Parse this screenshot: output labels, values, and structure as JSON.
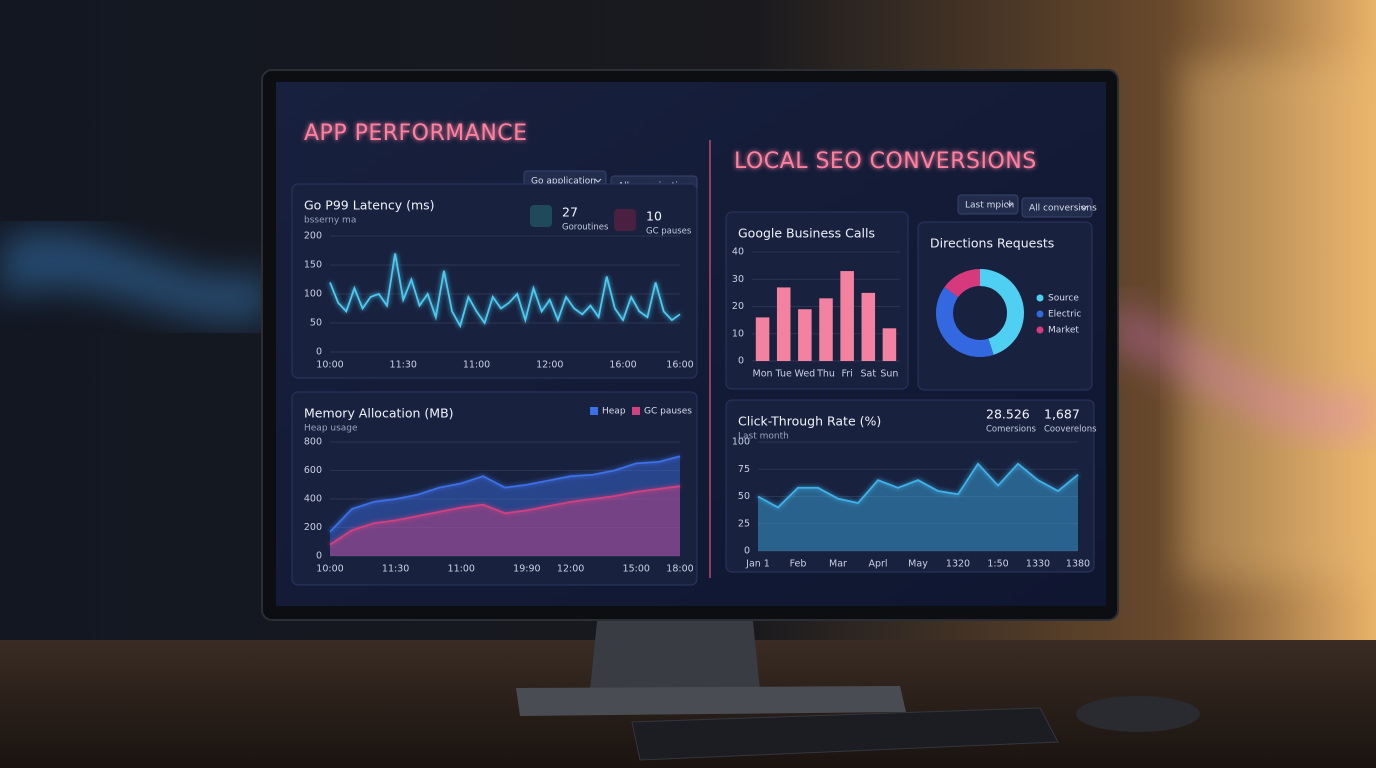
{
  "left": {
    "title": "APP PERFORMANCE",
    "filters": [
      "Go application",
      "All mormication"
    ]
  },
  "right": {
    "title": "LOCAL SEO CONVERSIONS",
    "filters": [
      "Last mpich",
      "All conversions"
    ]
  },
  "chart_data": [
    {
      "type": "line",
      "title": "Go P99 Latency (ms)",
      "subtitle": "bsserny ma",
      "stats": [
        {
          "value": "27",
          "label": "Goroutines"
        },
        {
          "value": "10",
          "label": "GC pauses"
        }
      ],
      "categories": [
        "10:00",
        null,
        null,
        null,
        null,
        null,
        null,
        null,
        null,
        "11:30",
        null,
        null,
        null,
        null,
        null,
        null,
        null,
        null,
        "11:00",
        null,
        null,
        null,
        null,
        null,
        null,
        null,
        null,
        "12:00",
        null,
        null,
        null,
        null,
        null,
        null,
        null,
        null,
        "16:00",
        null,
        null,
        null,
        null,
        null,
        null,
        "16:00"
      ],
      "values": [
        120,
        85,
        70,
        110,
        75,
        95,
        100,
        80,
        170,
        90,
        125,
        80,
        100,
        60,
        140,
        70,
        45,
        95,
        70,
        50,
        95,
        75,
        85,
        100,
        55,
        110,
        70,
        90,
        55,
        95,
        75,
        65,
        80,
        60,
        130,
        75,
        55,
        95,
        70,
        60,
        120,
        70,
        55,
        65
      ],
      "color": "#4cc9f0",
      "ylim": [
        0,
        200
      ],
      "yticks": [
        0,
        50,
        100,
        150,
        200
      ],
      "grid": true
    },
    {
      "type": "area",
      "title": "Memory Allocation (MB)",
      "subtitle": "Heap usage",
      "categories": [
        "10:00",
        null,
        null,
        "11:30",
        null,
        null,
        "11:00",
        null,
        null,
        "19:90",
        null,
        "12:00",
        null,
        null,
        "15:00",
        null,
        "18:00"
      ],
      "series": [
        {
          "name": "Heap",
          "color": "#3b6fe6",
          "values": [
            170,
            330,
            380,
            400,
            430,
            480,
            510,
            560,
            480,
            500,
            530,
            560,
            570,
            600,
            650,
            660,
            700
          ]
        },
        {
          "name": "GC pauses",
          "color": "#d2417f",
          "values": [
            80,
            180,
            230,
            250,
            280,
            310,
            340,
            360,
            300,
            320,
            350,
            380,
            400,
            420,
            450,
            470,
            490
          ]
        }
      ],
      "ylim": [
        0,
        800
      ],
      "yticks": [
        0,
        200,
        400,
        600,
        800
      ],
      "grid": true,
      "legend": "top-right"
    },
    {
      "type": "bar",
      "title": "Google Business Calls",
      "categories": [
        "Mon",
        "Tue",
        "Wed",
        "Thu",
        "Fri",
        "Sat",
        "Sun"
      ],
      "values": [
        16,
        27,
        19,
        23,
        33,
        25,
        12
      ],
      "color": "#f2829f",
      "ylim": [
        0,
        40
      ],
      "yticks": [
        0,
        10,
        20,
        30,
        40
      ],
      "grid": true
    },
    {
      "type": "pie",
      "title": "Directions Requests",
      "categories": [
        "Source",
        "Electric",
        "Market"
      ],
      "values": [
        45,
        40,
        15
      ],
      "colors": [
        "#4fd0f2",
        "#3468e0",
        "#d63a7c"
      ],
      "legend": "right"
    },
    {
      "type": "area",
      "title": "Click-Through Rate (%)",
      "subtitle": "Last month",
      "stats": [
        {
          "value": "28.526",
          "label": "Comersions"
        },
        {
          "value": "1,687",
          "label": "Cooverelons"
        }
      ],
      "categories": [
        "Jan 1",
        null,
        "Feb",
        null,
        "Mar",
        null,
        "Aprl",
        null,
        "May",
        null,
        "1320",
        null,
        "1:50",
        null,
        "1330",
        null,
        "1380"
      ],
      "values": [
        50,
        40,
        58,
        58,
        48,
        44,
        65,
        58,
        65,
        55,
        52,
        80,
        60,
        80,
        65,
        55,
        70
      ],
      "color": "#3fb2ea",
      "ylim": [
        0,
        100
      ],
      "yticks": [
        0,
        25,
        50,
        75,
        100
      ],
      "grid": true
    }
  ]
}
